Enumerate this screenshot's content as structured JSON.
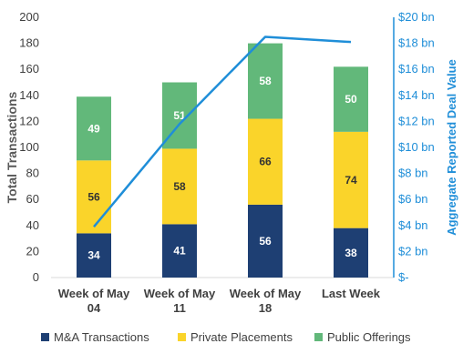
{
  "chart_data": {
    "type": "bar",
    "stacked": true,
    "categories": [
      [
        "Week of May",
        "04"
      ],
      [
        "Week of May",
        "11"
      ],
      [
        "Week of May",
        "18"
      ],
      [
        "Last Week"
      ]
    ],
    "ylabel": "Total Transactions",
    "ylim": [
      0,
      200
    ],
    "yticks": [
      "0",
      "20",
      "40",
      "60",
      "80",
      "100",
      "120",
      "140",
      "160",
      "180",
      "200"
    ],
    "y2label": "Aggregate Reported Deal Value",
    "y2lim": [
      0,
      20
    ],
    "y2ticks": [
      "$-",
      "$2 bn",
      "$4 bn",
      "$6 bn",
      "$8 bn",
      "$10 bn",
      "$12 bn",
      "$14 bn",
      "$16 bn",
      "$18 bn",
      "$20 bn"
    ],
    "series": [
      {
        "name": "M&A Transactions",
        "type": "bar",
        "color": "#1e3f73",
        "label_color": "#ffffff",
        "values": [
          34,
          41,
          56,
          38
        ]
      },
      {
        "name": "Private Placements",
        "type": "bar",
        "color": "#fad42a",
        "label_color": "#333333",
        "values": [
          56,
          58,
          66,
          74
        ]
      },
      {
        "name": "Public Offerings",
        "type": "bar",
        "color": "#62b87a",
        "label_color": "#ffffff",
        "values": [
          49,
          51,
          58,
          50
        ]
      },
      {
        "type": "line",
        "axis": "right",
        "color": "#1f8ed8",
        "values": [
          3.9,
          11.8,
          18.5,
          18.1
        ]
      }
    ],
    "legend_position": "bottom",
    "grid": false
  }
}
